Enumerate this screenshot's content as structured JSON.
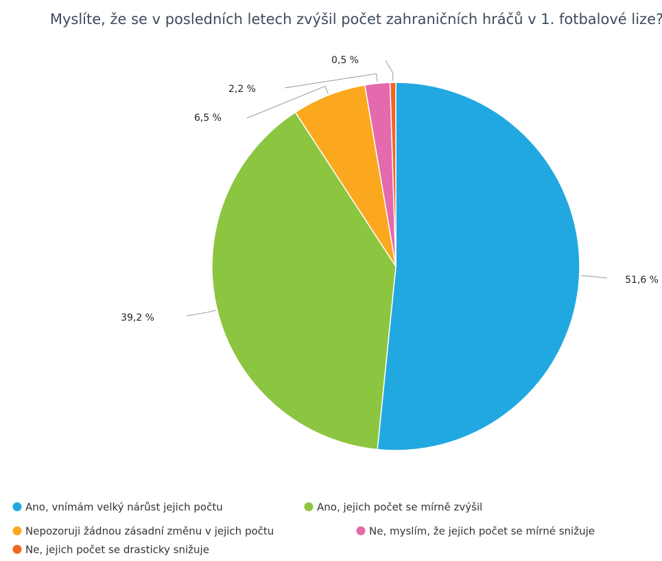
{
  "chart_data": {
    "type": "pie",
    "title": "Myslíte, že se v posledních letech zvýšil počet zahraničních hráčů v 1. fotbalové lize?",
    "categories": [
      "Ano, vnímám velký nárůst jejich počtu",
      "Ano, jejich počet se mírně zvýšil",
      "Nepozoruji žádnou zásadní změnu v jejich počtu",
      "Ne, myslím, že jejich počet se mírné snižuje",
      "Ne, jejich počet se drasticky snižuje"
    ],
    "values": [
      51.6,
      39.2,
      6.5,
      2.2,
      0.5
    ],
    "value_labels": [
      "51,6 %",
      "39,2 %",
      "6,5 %",
      "2,2 %",
      "0,5 %"
    ],
    "colors": [
      "#22a8e1",
      "#8cc540",
      "#fba81f",
      "#e46aad",
      "#f26522"
    ]
  }
}
